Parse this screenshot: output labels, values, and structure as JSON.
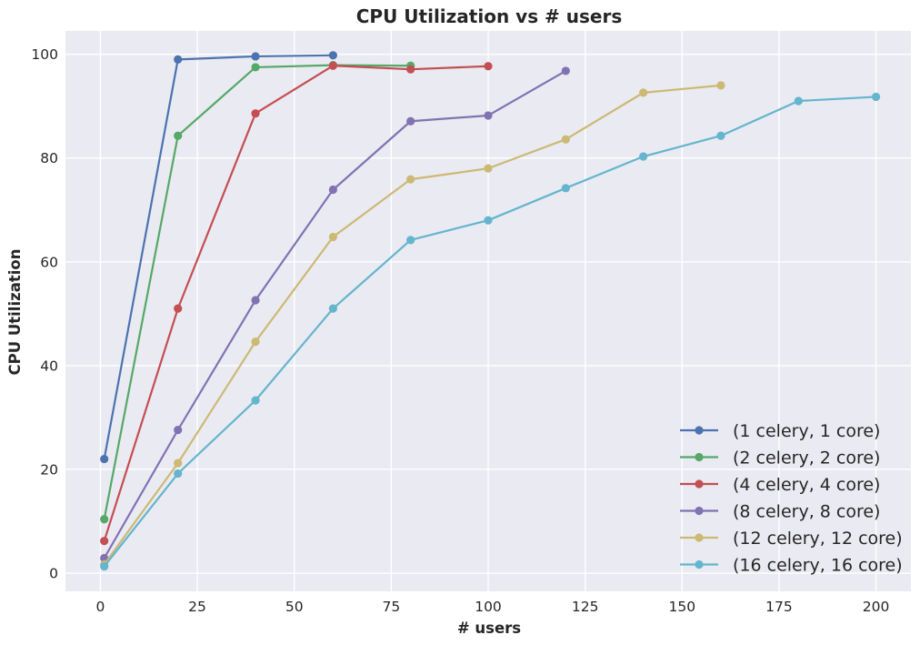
{
  "chart_data": {
    "type": "line",
    "title": "CPU Utilization vs # users",
    "xlabel": "# users",
    "ylabel": "CPU Utilization",
    "xlim": [
      -9,
      209
    ],
    "ylim": [
      -3.5,
      104.5
    ],
    "xticks": [
      0,
      25,
      50,
      75,
      100,
      125,
      150,
      175,
      200
    ],
    "yticks": [
      0,
      20,
      40,
      60,
      80,
      100
    ],
    "grid": true,
    "legend_position": "bottom-right",
    "background": "#eaeaf2",
    "series": [
      {
        "name": "(1 celery, 1 core)",
        "color": "#4c72b0",
        "x": [
          1,
          20,
          40,
          60
        ],
        "y": [
          22.0,
          99.0,
          99.6,
          99.8
        ]
      },
      {
        "name": "(2 celery, 2 core)",
        "color": "#55a868",
        "x": [
          1,
          20,
          40,
          60,
          80
        ],
        "y": [
          10.4,
          84.3,
          97.5,
          97.9,
          97.8
        ]
      },
      {
        "name": "(4 celery, 4 core)",
        "color": "#c44e52",
        "x": [
          1,
          20,
          40,
          60,
          80,
          100
        ],
        "y": [
          6.2,
          51.0,
          88.6,
          97.8,
          97.1,
          97.7
        ]
      },
      {
        "name": "(8 celery, 8 core)",
        "color": "#8172b2",
        "x": [
          1,
          20,
          40,
          60,
          80,
          100,
          120
        ],
        "y": [
          2.9,
          27.6,
          52.6,
          73.9,
          87.1,
          88.2,
          96.8
        ]
      },
      {
        "name": "(12 celery, 12 core)",
        "color": "#ccb974",
        "x": [
          1,
          20,
          40,
          60,
          80,
          100,
          120,
          140,
          160
        ],
        "y": [
          1.7,
          21.2,
          44.6,
          64.8,
          75.9,
          78.0,
          83.6,
          92.6,
          94.0
        ]
      },
      {
        "name": "(16 celery, 16 core)",
        "color": "#64b5cd",
        "x": [
          1,
          20,
          40,
          60,
          80,
          100,
          120,
          140,
          160,
          180,
          200
        ],
        "y": [
          1.3,
          19.2,
          33.3,
          51.0,
          64.2,
          68.0,
          74.2,
          80.3,
          84.3,
          91.0,
          91.8
        ]
      }
    ]
  }
}
